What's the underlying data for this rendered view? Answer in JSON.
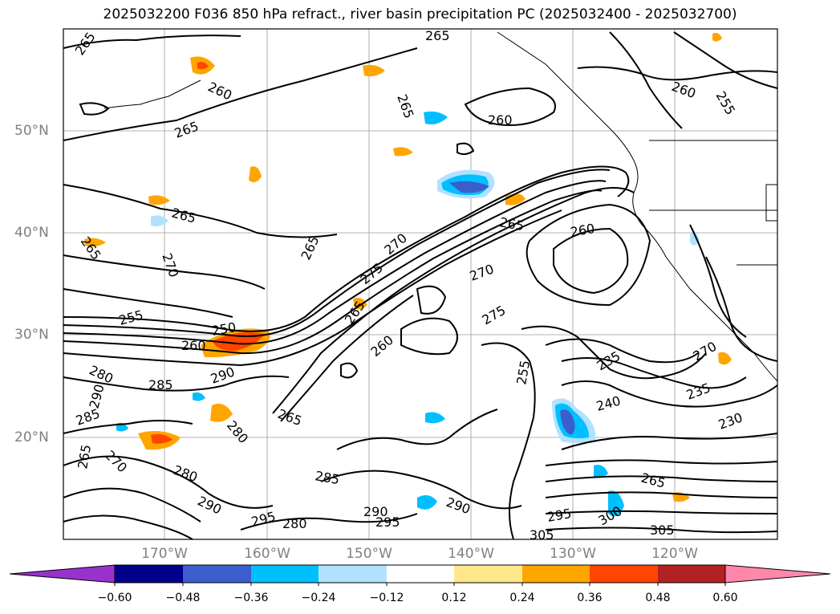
{
  "title": "2025032200 F036 850 hPa refract., river basin precipitation PC (2025032400 - 2025032700)",
  "lat_labels": [
    "50°N",
    "40°N",
    "30°N",
    "20°N"
  ],
  "lon_labels": [
    "170°W",
    "160°W",
    "150°W",
    "140°W",
    "130°W",
    "120°W"
  ],
  "colorbar": {
    "ticks": [
      "−0.60",
      "−0.48",
      "−0.36",
      "−0.24",
      "−0.12",
      "0.12",
      "0.24",
      "0.36",
      "0.48",
      "0.60"
    ],
    "colors": [
      "#9932cc",
      "#00008b",
      "#3a5fcd",
      "#00bfff",
      "#b0e2ff",
      "#ffffff",
      "#ffe88a",
      "#ffa500",
      "#ff4500",
      "#b22222",
      "#ff88aa"
    ]
  },
  "contour_labels": [
    "265",
    "260",
    "265",
    "260",
    "255",
    "265",
    "265",
    "260",
    "265",
    "265",
    "270",
    "265",
    "270",
    "275",
    "270",
    "275",
    "265",
    "260",
    "255",
    "250",
    "260",
    "280",
    "290",
    "285",
    "290",
    "285",
    "265",
    "280",
    "235",
    "240",
    "235",
    "230",
    "270",
    "260",
    "265",
    "285",
    "280",
    "290",
    "295",
    "280",
    "290",
    "295",
    "305",
    "300",
    "305",
    "265",
    "295",
    "290",
    "265",
    "270",
    "255"
  ]
}
